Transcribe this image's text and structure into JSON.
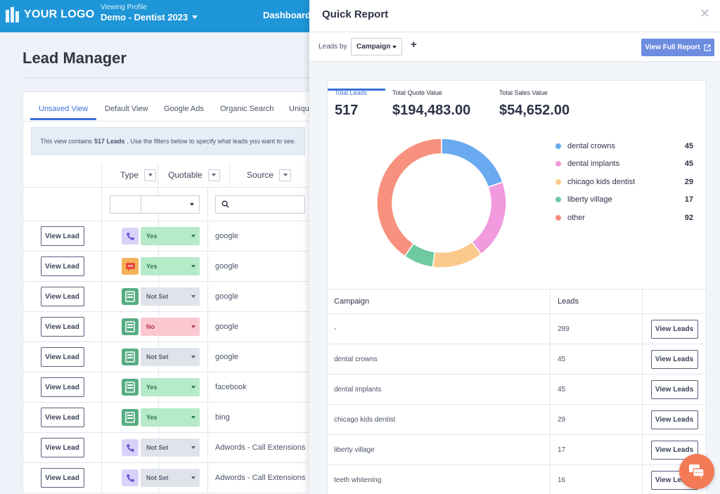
{
  "header": {
    "logo_text": "YOUR LOGO",
    "viewing_profile_label": "Viewing Profile",
    "profile_name": "Demo - Dentist 2023",
    "dashboard_link": "Dashboard"
  },
  "lead_manager": {
    "title": "Lead Manager",
    "tabs": [
      "Unsaved View",
      "Default View",
      "Google Ads",
      "Organic Search",
      "Uniqu"
    ],
    "notice_before": "This view contains",
    "notice_count": "517 Leads",
    "notice_after": ". Use the filters below to specify what leads you want to see.",
    "columns": {
      "type": "Type",
      "quotable": "Quotable",
      "source": "Source"
    },
    "rows": [
      {
        "action": "View Lead",
        "type": "phone",
        "quotable": "Yes",
        "source": "google"
      },
      {
        "action": "View Lead",
        "type": "chat",
        "quotable": "Yes",
        "source": "google"
      },
      {
        "action": "View Lead",
        "type": "form",
        "quotable": "Not Set",
        "source": "google"
      },
      {
        "action": "View Lead",
        "type": "form",
        "quotable": "No",
        "source": "google"
      },
      {
        "action": "View Lead",
        "type": "form",
        "quotable": "Not Set",
        "source": "google"
      },
      {
        "action": "View Lead",
        "type": "form",
        "quotable": "Yes",
        "source": "facebook"
      },
      {
        "action": "View Lead",
        "type": "form",
        "quotable": "Yes",
        "source": "bing"
      },
      {
        "action": "View Lead",
        "type": "phone",
        "quotable": "Not Set",
        "source": "Adwords - Call Extensions"
      },
      {
        "action": "View Lead",
        "type": "phone",
        "quotable": "Not Set",
        "source": "Adwords - Call Extensions"
      }
    ]
  },
  "quick_report": {
    "title": "Quick Report",
    "leads_by_label": "Leads by",
    "leads_by_value": "Campaign",
    "view_full_report": "View Full Report",
    "stats": [
      {
        "label": "Total Leads",
        "value": "517"
      },
      {
        "label": "Total Quote Value",
        "value": "$194,483.00"
      },
      {
        "label": "Total Sales Value",
        "value": "$54,652.00"
      }
    ],
    "table_headers": {
      "campaign": "Campaign",
      "leads": "Leads"
    },
    "table_rows": [
      {
        "campaign": "-",
        "leads": "289",
        "action": "View Leads"
      },
      {
        "campaign": "dental crowns",
        "leads": "45",
        "action": "View Leads"
      },
      {
        "campaign": "dental implants",
        "leads": "45",
        "action": "View Leads"
      },
      {
        "campaign": "chicago kids dentist",
        "leads": "29",
        "action": "View Leads"
      },
      {
        "campaign": "liberty village",
        "leads": "17",
        "action": "View Leads"
      },
      {
        "campaign": "teeth whitening",
        "leads": "16",
        "action": "View Leads"
      }
    ]
  },
  "chart_data": {
    "type": "pie",
    "title": "Leads by Campaign",
    "categories": [
      "dental crowns",
      "dental implants",
      "chicago kids dentist",
      "liberty village",
      "other"
    ],
    "values": [
      45,
      45,
      29,
      17,
      92
    ],
    "colors": [
      "#6aaaf0",
      "#f19ade",
      "#fbc98b",
      "#6fcaa0",
      "#f7917d"
    ]
  },
  "colors": {
    "topbar": "#1f96d8",
    "accent": "#3b6fd8",
    "view_full_report_button": "#6d8de0",
    "chat_bubble": "#f47a56"
  }
}
